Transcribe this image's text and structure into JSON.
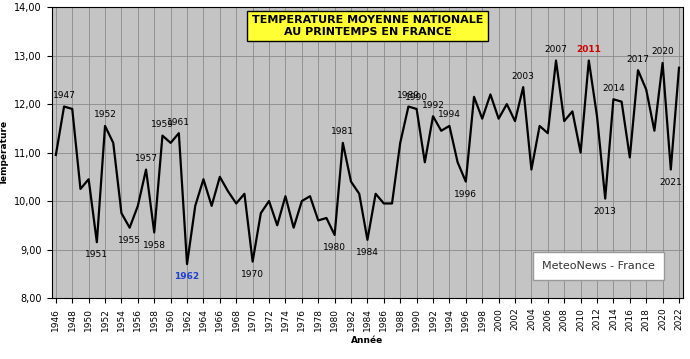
{
  "chart_data": {
    "type": "line",
    "title": "TEMPERATURE MOYENNE NATIONALE\nAU PRINTEMPS EN FRANCE",
    "x_label": "Année",
    "y_label": "Température",
    "source": "MeteoNews - France",
    "x": [
      1946,
      1947,
      1948,
      1949,
      1950,
      1951,
      1952,
      1953,
      1954,
      1955,
      1956,
      1957,
      1958,
      1959,
      1960,
      1961,
      1962,
      1963,
      1964,
      1965,
      1966,
      1967,
      1968,
      1969,
      1970,
      1971,
      1972,
      1973,
      1974,
      1975,
      1976,
      1977,
      1978,
      1979,
      1980,
      1981,
      1982,
      1983,
      1984,
      1985,
      1986,
      1987,
      1988,
      1989,
      1990,
      1991,
      1992,
      1993,
      1994,
      1995,
      1996,
      1997,
      1998,
      1999,
      2000,
      2001,
      2002,
      2003,
      2004,
      2005,
      2006,
      2007,
      2008,
      2009,
      2010,
      2011,
      2012,
      2013,
      2014,
      2015,
      2016,
      2017,
      2018,
      2019,
      2020,
      2021,
      2022
    ],
    "values": [
      10.95,
      11.95,
      11.9,
      10.25,
      10.45,
      9.15,
      11.55,
      11.2,
      9.75,
      9.45,
      9.9,
      10.65,
      9.35,
      11.35,
      11.2,
      11.4,
      8.7,
      9.9,
      10.45,
      9.9,
      10.5,
      10.2,
      9.95,
      10.15,
      8.75,
      9.75,
      10.0,
      9.5,
      10.1,
      9.45,
      10.0,
      10.1,
      9.6,
      9.65,
      9.3,
      11.2,
      10.4,
      10.15,
      9.2,
      10.15,
      9.95,
      9.95,
      11.2,
      11.95,
      11.9,
      10.8,
      11.75,
      11.45,
      11.55,
      10.8,
      10.4,
      12.15,
      11.7,
      12.2,
      11.7,
      12.0,
      11.65,
      12.35,
      10.65,
      11.55,
      11.4,
      12.9,
      11.65,
      11.85,
      11.0,
      12.9,
      11.75,
      10.05,
      12.1,
      12.05,
      10.9,
      12.7,
      12.3,
      11.45,
      12.85,
      10.65,
      12.75
    ],
    "color": "#000000",
    "xlim": [
      1945.5,
      2022.5
    ],
    "xticks": [
      1946,
      1948,
      1950,
      1952,
      1954,
      1956,
      1958,
      1960,
      1962,
      1964,
      1966,
      1968,
      1970,
      1972,
      1974,
      1976,
      1978,
      1980,
      1982,
      1984,
      1986,
      1988,
      1990,
      1992,
      1994,
      1996,
      1998,
      2000,
      2002,
      2004,
      2006,
      2008,
      2010,
      2012,
      2014,
      2016,
      2018,
      2020,
      2022
    ],
    "ylim": [
      8,
      14
    ],
    "yticks": [
      {
        "value": 8,
        "label": "8,00"
      },
      {
        "value": 9,
        "label": "9,00"
      },
      {
        "value": 10,
        "label": "10,00"
      },
      {
        "value": 11,
        "label": "11,00"
      },
      {
        "value": 12,
        "label": "12,00"
      },
      {
        "value": 13,
        "label": "13,00"
      },
      {
        "value": 14,
        "label": "14,00"
      }
    ],
    "grid": true,
    "annotations": [
      {
        "text": "1947",
        "color": "#000000"
      },
      {
        "text": "1951",
        "color": "#000000"
      },
      {
        "text": "1952",
        "color": "#000000"
      },
      {
        "text": "1955",
        "color": "#000000"
      },
      {
        "text": "1957",
        "color": "#000000"
      },
      {
        "text": "1958",
        "color": "#000000"
      },
      {
        "text": "1959",
        "color": "#000000"
      },
      {
        "text": "1961",
        "color": "#000000"
      },
      {
        "text": "1962",
        "color": "#1f3fd0"
      },
      {
        "text": "1970",
        "color": "#000000"
      },
      {
        "text": "1980",
        "color": "#000000"
      },
      {
        "text": "1981",
        "color": "#000000"
      },
      {
        "text": "1984",
        "color": "#000000"
      },
      {
        "text": "1989",
        "color": "#000000"
      },
      {
        "text": "1990",
        "color": "#000000"
      },
      {
        "text": "1992",
        "color": "#000000"
      },
      {
        "text": "1994",
        "color": "#000000"
      },
      {
        "text": "1996",
        "color": "#000000"
      },
      {
        "text": "2003",
        "color": "#000000"
      },
      {
        "text": "2007",
        "color": "#000000"
      },
      {
        "text": "2011",
        "color": "#d00000"
      },
      {
        "text": "2013",
        "color": "#000000"
      },
      {
        "text": "2014",
        "color": "#000000"
      },
      {
        "text": "2017",
        "color": "#000000"
      },
      {
        "text": "2020",
        "color": "#000000"
      },
      {
        "text": "2021",
        "color": "#000000"
      }
    ]
  }
}
